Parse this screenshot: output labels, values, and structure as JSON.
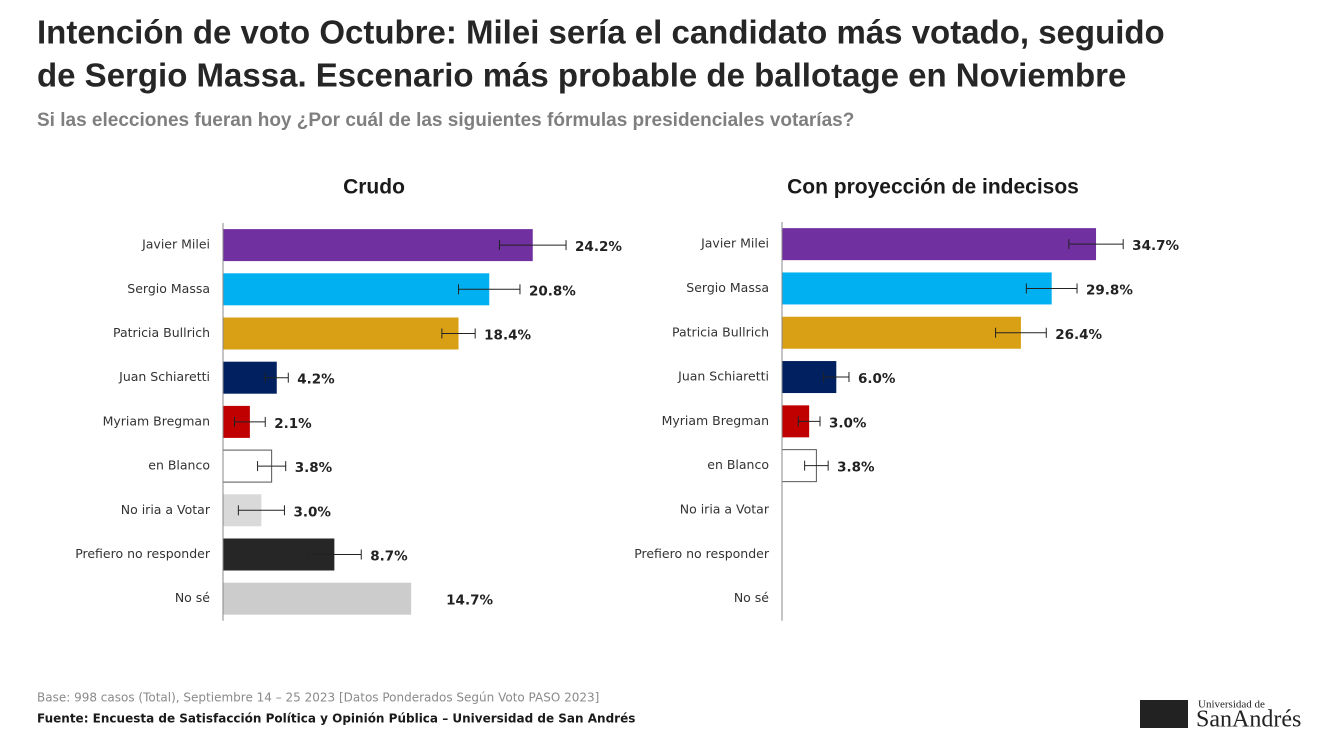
{
  "title": [
    "Intención de voto Octubre: Milei sería el candidato más votado, seguido",
    "de Sergio Massa. Escenario más probable de ballotage en Noviembre"
  ],
  "subtitle": "Si las elecciones fueran hoy ¿Por cuál de las siguientes fórmulas presidenciales votarías?",
  "chart_data": [
    {
      "type": "bar",
      "orientation": "horizontal",
      "title": "Crudo",
      "categories": [
        "Javier Milei",
        "Sergio Massa",
        "Patricia Bullrich",
        "Juan Schiaretti",
        "Myriam Bregman",
        "en Blanco",
        "No iria a Votar",
        "Prefiero no responder",
        "No sé"
      ],
      "values": [
        24.2,
        20.8,
        18.4,
        4.2,
        2.1,
        3.8,
        3.0,
        8.7,
        14.7
      ],
      "value_labels": [
        "24.2%",
        "20.8%",
        "18.4%",
        "4.2%",
        "2.1%",
        "3.8%",
        "3.0%",
        "8.7%",
        "14.7%"
      ],
      "errors": [
        2.6,
        2.4,
        1.3,
        0.9,
        1.2,
        1.1,
        1.8,
        2.1,
        null
      ],
      "colors": [
        "#7030a0",
        "#00b0f0",
        "#d9a015",
        "#002060",
        "#c00000",
        "#ffffff",
        "#d9d9d9",
        "#262626",
        "#cccccc"
      ],
      "xlim": [
        0,
        30
      ]
    },
    {
      "type": "bar",
      "orientation": "horizontal",
      "title": "Con proyección de indecisos",
      "categories": [
        "Javier Milei",
        "Sergio Massa",
        "Patricia Bullrich",
        "Juan Schiaretti",
        "Myriam Bregman",
        "en Blanco",
        "No iria a Votar",
        "Prefiero no responder",
        "No sé"
      ],
      "values": [
        34.7,
        29.8,
        26.4,
        6.0,
        3.0,
        3.8,
        null,
        null,
        null
      ],
      "value_labels": [
        "34.7%",
        "29.8%",
        "26.4%",
        "6.0%",
        "3.0%",
        "3.8%",
        null,
        null,
        null
      ],
      "errors": [
        3.0,
        2.8,
        2.8,
        1.4,
        1.2,
        1.3,
        null,
        null,
        null
      ],
      "colors": [
        "#7030a0",
        "#00b0f0",
        "#d9a015",
        "#002060",
        "#c00000",
        "#ffffff",
        null,
        null,
        null
      ],
      "xlim": [
        0,
        40
      ]
    }
  ],
  "footer": {
    "base": "Base: 998 casos (Total), Septiembre 14 – 25 2023 [Datos Ponderados Según Voto PASO 2023]",
    "source": "Fuente: Encuesta de Satisfacción Política y Opinión Pública – Universidad de San Andrés"
  },
  "logo": {
    "line1": "Universidad de",
    "line2": "SanAndrés"
  }
}
